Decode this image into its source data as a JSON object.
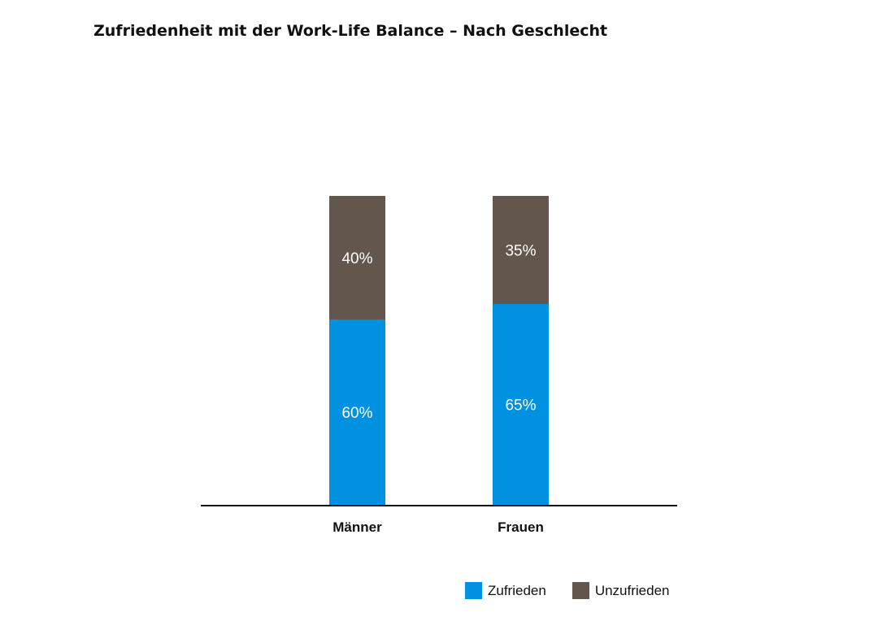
{
  "chart_data": {
    "type": "bar",
    "stacked": true,
    "title": "Zufriedenheit mit der Work-Life Balance – Nach Geschlecht",
    "categories": [
      "Männer",
      "Frauen"
    ],
    "series": [
      {
        "name": "Zufrieden",
        "values": [
          60,
          65
        ],
        "labels": [
          "60%",
          "65%"
        ],
        "color": "#0091E0"
      },
      {
        "name": "Unzufrieden",
        "values": [
          40,
          35
        ],
        "labels": [
          "40%",
          "35%"
        ],
        "color": "#62564D"
      }
    ],
    "ylim": [
      0,
      100
    ],
    "grid": false,
    "legend_position": "bottom-right"
  }
}
